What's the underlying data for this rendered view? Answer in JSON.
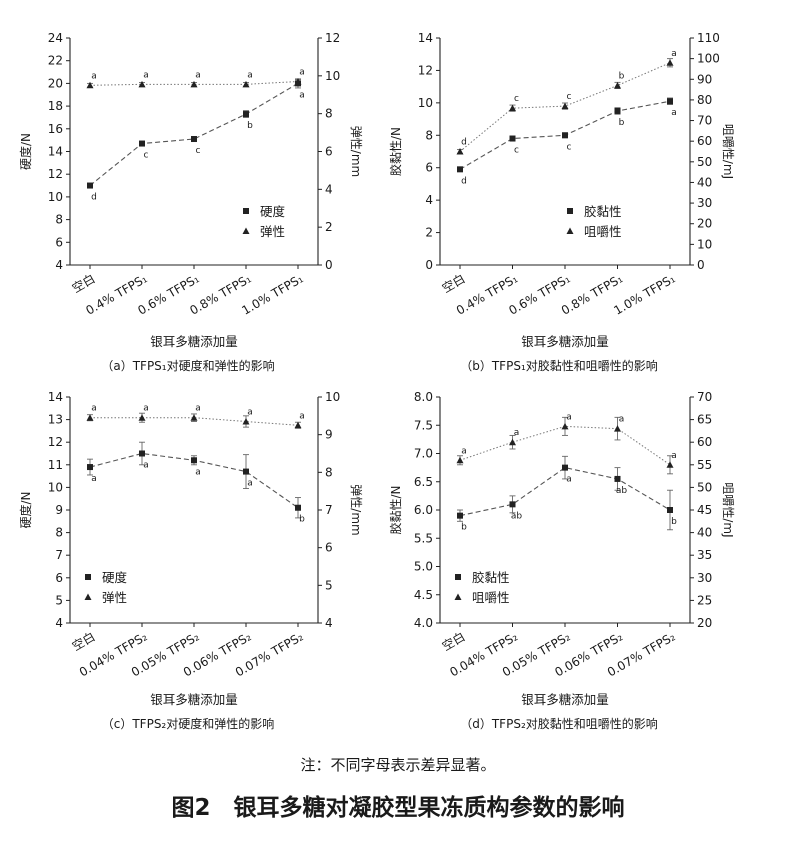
{
  "figure": {
    "title": "图2　银耳多糖对凝胶型果冻质构参数的影响",
    "note": "注：不同字母表示差异显著。"
  },
  "chart_data": [
    {
      "type": "line",
      "caption": "（a）TFPS₁对硬度和弹性的影响",
      "xlabel": "银耳多糖添加量",
      "categories": [
        "空白",
        "0.4% TFPS₁",
        "0.6% TFPS₁",
        "0.8% TFPS₁",
        "1.0% TFPS₁"
      ],
      "left_axis": {
        "label": "硬度/N",
        "range": [
          4,
          24
        ],
        "ticks": [
          "4",
          "6",
          "8",
          "10",
          "12",
          "14",
          "16",
          "18",
          "20",
          "22",
          "24"
        ]
      },
      "right_axis": {
        "label": "弹性/mm",
        "range": [
          0,
          12
        ],
        "ticks": [
          "0",
          "2",
          "4",
          "6",
          "8",
          "10",
          "12"
        ]
      },
      "legend_position": "middle-right",
      "series": [
        {
          "name": "硬度",
          "axis": "left",
          "marker": "square",
          "values": [
            11.0,
            14.7,
            15.1,
            17.3,
            20.0
          ],
          "errors": [
            0.2,
            0.2,
            0.2,
            0.3,
            0.4
          ],
          "letters": [
            "d",
            "c",
            "c",
            "b",
            "a"
          ]
        },
        {
          "name": "弹性",
          "axis": "right",
          "marker": "triangle",
          "values": [
            9.5,
            9.55,
            9.55,
            9.55,
            9.7
          ],
          "errors": [
            0.1,
            0.1,
            0.1,
            0.1,
            0.1
          ],
          "letters": [
            "a",
            "a",
            "a",
            "a",
            "a"
          ]
        }
      ]
    },
    {
      "type": "line",
      "caption": "（b）TFPS₁对胶黏性和咀嚼性的影响",
      "xlabel": "银耳多糖添加量",
      "categories": [
        "空白",
        "0.4% TFPS₁",
        "0.6% TFPS₁",
        "0.8% TFPS₁",
        "1.0% TFPS₁"
      ],
      "left_axis": {
        "label": "胶黏性/N",
        "range": [
          0,
          14
        ],
        "ticks": [
          "0",
          "2",
          "4",
          "6",
          "8",
          "10",
          "12",
          "14"
        ]
      },
      "right_axis": {
        "label": "咀嚼性/mJ",
        "range": [
          0,
          110
        ],
        "ticks": [
          "0",
          "10",
          "20",
          "30",
          "40",
          "50",
          "60",
          "70",
          "80",
          "90",
          "100",
          "110"
        ]
      },
      "legend_position": "bottom-right",
      "series": [
        {
          "name": "胶黏性",
          "axis": "left",
          "marker": "square",
          "values": [
            5.9,
            7.8,
            8.0,
            9.5,
            10.1
          ],
          "errors": [
            0.1,
            0.15,
            0.15,
            0.2,
            0.2
          ],
          "letters": [
            "d",
            "c",
            "c",
            "b",
            "a"
          ]
        },
        {
          "name": "咀嚼性",
          "axis": "right",
          "marker": "triangle",
          "values": [
            55,
            76,
            77,
            87,
            98
          ],
          "errors": [
            1,
            1.5,
            1.5,
            1.5,
            2
          ],
          "letters": [
            "d",
            "c",
            "c",
            "b",
            "a"
          ]
        }
      ]
    },
    {
      "type": "line",
      "caption": "（c）TFPS₂对硬度和弹性的影响",
      "xlabel": "银耳多糖添加量",
      "categories": [
        "空白",
        "0.04% TFPS₂",
        "0.05% TFPS₂",
        "0.06% TFPS₂",
        "0.07% TFPS₂"
      ],
      "left_axis": {
        "label": "硬度/N",
        "range": [
          4,
          14
        ],
        "ticks": [
          "4",
          "5",
          "6",
          "7",
          "8",
          "9",
          "10",
          "11",
          "12",
          "13",
          "14"
        ]
      },
      "right_axis": {
        "label": "弹性/mm",
        "range": [
          4,
          10
        ],
        "ticks": [
          "4",
          "5",
          "6",
          "7",
          "8",
          "9",
          "10"
        ]
      },
      "legend_position": "bottom-left",
      "series": [
        {
          "name": "硬度",
          "axis": "left",
          "marker": "square",
          "values": [
            10.9,
            11.5,
            11.2,
            10.7,
            9.1
          ],
          "errors": [
            0.35,
            0.5,
            0.2,
            0.75,
            0.45
          ],
          "letters": [
            "a",
            "a",
            "a",
            "a",
            "b"
          ]
        },
        {
          "name": "弹性",
          "axis": "right",
          "marker": "triangle",
          "values": [
            9.45,
            9.45,
            9.45,
            9.35,
            9.25
          ],
          "errors": [
            0.08,
            0.12,
            0.1,
            0.15,
            0.08
          ],
          "letters": [
            "a",
            "a",
            "a",
            "a",
            "a"
          ]
        }
      ]
    },
    {
      "type": "line",
      "caption": "（d）TFPS₂对胶黏性和咀嚼性的影响",
      "xlabel": "银耳多糖添加量",
      "categories": [
        "空白",
        "0.04% TFPS₂",
        "0.05% TFPS₂",
        "0.06% TFPS₂",
        "0.07% TFPS₂"
      ],
      "left_axis": {
        "label": "胶黏性/N",
        "range": [
          4.0,
          8.0
        ],
        "ticks": [
          "4.0",
          "4.5",
          "5.0",
          "5.5",
          "6.0",
          "6.5",
          "7.0",
          "7.5",
          "8.0"
        ]
      },
      "right_axis": {
        "label": "咀嚼性/mJ",
        "range": [
          20,
          70
        ],
        "ticks": [
          "20",
          "25",
          "30",
          "35",
          "40",
          "45",
          "50",
          "55",
          "60",
          "65",
          "70"
        ]
      },
      "legend_position": "bottom-left",
      "series": [
        {
          "name": "胶黏性",
          "axis": "left",
          "marker": "square",
          "values": [
            5.9,
            6.1,
            6.75,
            6.55,
            6.0
          ],
          "errors": [
            0.1,
            0.15,
            0.2,
            0.2,
            0.35
          ],
          "letters": [
            "b",
            "ab",
            "a",
            "ab",
            "b"
          ]
        },
        {
          "name": "咀嚼性",
          "axis": "right",
          "marker": "triangle",
          "values": [
            56,
            60,
            63.5,
            63,
            55
          ],
          "errors": [
            1,
            1.5,
            2,
            2.5,
            2
          ],
          "letters": [
            "a",
            "a",
            "a",
            "a",
            "a"
          ]
        }
      ]
    }
  ]
}
